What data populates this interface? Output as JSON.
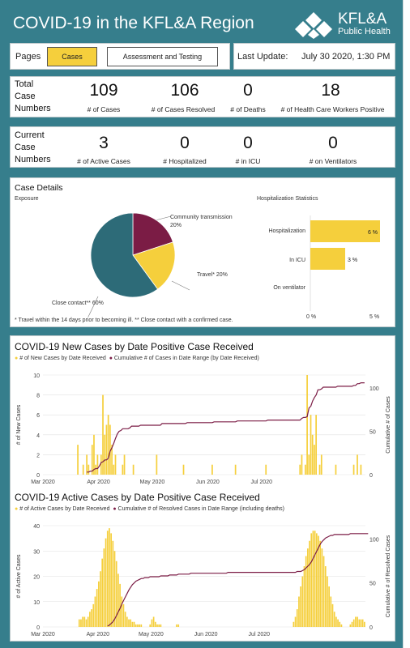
{
  "header": {
    "title": "COVID-19 in the KFL&A Region",
    "logo_name": "KFL&A",
    "logo_sub": "Public Health"
  },
  "pages": {
    "label": "Pages",
    "tabs": [
      "Cases",
      "Assessment and Testing"
    ],
    "active": 0
  },
  "last_update": {
    "label": "Last Update:",
    "value": "July 30 2020, 1:30 PM"
  },
  "totals": {
    "row_label": [
      "Total",
      "Case",
      "Numbers"
    ],
    "items": [
      {
        "value": "109",
        "label": "# of Cases"
      },
      {
        "value": "106",
        "label": "# of Cases Resolved"
      },
      {
        "value": "0",
        "label": "# of Deaths"
      },
      {
        "value": "18",
        "label": "# of Health Care Workers Positive"
      }
    ]
  },
  "current": {
    "row_label": [
      "Current",
      "Case",
      "Numbers"
    ],
    "items": [
      {
        "value": "3",
        "label": "# of Active Cases"
      },
      {
        "value": "0",
        "label": "# Hospitalized"
      },
      {
        "value": "0",
        "label": "# in ICU"
      },
      {
        "value": "0",
        "label": "# on Ventilators"
      }
    ]
  },
  "case_details": {
    "title": "Case Details",
    "exposure_label": "Exposure",
    "hosp_title": "Hospitalization Statistics",
    "footnote": "* Travel within the 14 days prior to becoming ill. ** Close contact with a confirmed case.",
    "pie": [
      {
        "label": "Community transmission",
        "pct_label": "20%",
        "value": 20,
        "color": "#7b1c45"
      },
      {
        "label": "Travel*",
        "pct_label": "20%",
        "value": 20,
        "color": "#f5cf3c"
      },
      {
        "label": "Close contact**",
        "pct_label": "60%",
        "value": 60,
        "color": "#2d6b78"
      }
    ],
    "hosp_bars": [
      {
        "label": "Hospitalization",
        "value": 6,
        "value_label": "6 %"
      },
      {
        "label": "In ICU",
        "value": 3,
        "value_label": "3 %"
      },
      {
        "label": "On ventilator",
        "value": 0,
        "value_label": ""
      }
    ],
    "hosp_ticks": [
      "0 %",
      "5 %"
    ],
    "hosp_max": 6
  },
  "chart_data": [
    {
      "type": "bar",
      "title": "COVID-19 New Cases by Date Positive Case Received",
      "legend": [
        "# of New Cases by Date Received",
        "Cumulative # of Cases in Date Range (by Date Received)"
      ],
      "colors": {
        "bars": "#f5cf3c",
        "line": "#7b1c45"
      },
      "ylabel": "# of New Cases",
      "y2label": "Cumulative # of Cases",
      "xticks": [
        "Mar 2020",
        "Apr 2020",
        "May 2020",
        "Jun 2020",
        "Jul 2020"
      ],
      "yticks": [
        "0",
        "2",
        "4",
        "6",
        "8",
        "10"
      ],
      "y2ticks": [
        "0",
        "50",
        "100"
      ],
      "ylim": [
        0,
        10
      ],
      "y2lim": [
        0,
        115
      ],
      "values": [
        0,
        0,
        0,
        0,
        0,
        0,
        0,
        0,
        0,
        0,
        0,
        0,
        0,
        0,
        0,
        0,
        0,
        0,
        0,
        3,
        0,
        0,
        1,
        0,
        2,
        1,
        0,
        3,
        4,
        1,
        2,
        0,
        2,
        8,
        4,
        5,
        6,
        5,
        3,
        1,
        2,
        0,
        0,
        0,
        1,
        2,
        0,
        0,
        0,
        0,
        1,
        0,
        0,
        0,
        0,
        0,
        0,
        0,
        0,
        0,
        0,
        0,
        0,
        2,
        0,
        0,
        0,
        0,
        0,
        0,
        0,
        0,
        0,
        0,
        0,
        0,
        0,
        0,
        1,
        0,
        0,
        0,
        0,
        0,
        0,
        0,
        0,
        0,
        0,
        0,
        0,
        0,
        0,
        0,
        1,
        0,
        0,
        0,
        0,
        0,
        0,
        0,
        0,
        0,
        0,
        0,
        0,
        1,
        0,
        0,
        0,
        0,
        0,
        0,
        0,
        0,
        0,
        0,
        0,
        0,
        0,
        0,
        0,
        0,
        1,
        0,
        0,
        0,
        0,
        0,
        0,
        0,
        0,
        0,
        0,
        0,
        0,
        0,
        0,
        0,
        0,
        0,
        0,
        1,
        2,
        0,
        1,
        10,
        2,
        6,
        4,
        3,
        6,
        0,
        1,
        2,
        0,
        0,
        0,
        0,
        0,
        0,
        0,
        1,
        0,
        0,
        0,
        0,
        0,
        0,
        0,
        0,
        0,
        1,
        0,
        2,
        0,
        1,
        0,
        0
      ],
      "cumulative": [
        0,
        0,
        0,
        0,
        0,
        0,
        0,
        0,
        0,
        0,
        0,
        0,
        0,
        0,
        0,
        0,
        0,
        0,
        0,
        0,
        0,
        0,
        0,
        0,
        3,
        3,
        4,
        4,
        6,
        7,
        7,
        10,
        14,
        15,
        17,
        17,
        19,
        27,
        31,
        36,
        42,
        47,
        50,
        51,
        53,
        53,
        53,
        53,
        54,
        56,
        56,
        56,
        56,
        56,
        57,
        57,
        57,
        57,
        57,
        57,
        57,
        57,
        57,
        57,
        57,
        57,
        59,
        59,
        59,
        59,
        59,
        59,
        59,
        59,
        59,
        59,
        59,
        59,
        59,
        59,
        60,
        60,
        60,
        60,
        60,
        60,
        60,
        60,
        60,
        60,
        60,
        60,
        60,
        60,
        60,
        61,
        61,
        61,
        61,
        61,
        61,
        61,
        61,
        61,
        61,
        61,
        61,
        61,
        62,
        62,
        62,
        62,
        62,
        62,
        62,
        62,
        62,
        62,
        62,
        62,
        62,
        62,
        62,
        62,
        62,
        63,
        63,
        63,
        63,
        63,
        63,
        63,
        63,
        63,
        63,
        63,
        63,
        63,
        63,
        63,
        63,
        63,
        63,
        63,
        65,
        66,
        66,
        67,
        77,
        79,
        85,
        89,
        92,
        98,
        98,
        99,
        101,
        101,
        101,
        101,
        101,
        101,
        101,
        101,
        102,
        102,
        102,
        102,
        102,
        102,
        102,
        102,
        102,
        103,
        103,
        105,
        105,
        106,
        106,
        106
      ],
      "xtick_days": [
        0,
        31,
        61,
        92,
        122
      ]
    },
    {
      "type": "bar",
      "title": "COVID-19 Active Cases by Date Positive Case Received",
      "legend": [
        "# of Active Cases by Date Received",
        "Cumulative # of Resolved Cases in Date Range (including deaths)"
      ],
      "colors": {
        "bars": "#f5cf3c",
        "line": "#7b1c45"
      },
      "ylabel": "# of Active Cases",
      "y2label": "Cumulative # of Resolved Cases",
      "xticks": [
        "Mar 2020",
        "Apr 2020",
        "May 2020",
        "Jun 2020",
        "Jul 2020"
      ],
      "yticks": [
        "0",
        "10",
        "20",
        "30",
        "40"
      ],
      "y2ticks": [
        "0",
        "50",
        "100"
      ],
      "ylim": [
        0,
        40
      ],
      "y2lim": [
        0,
        115
      ],
      "values": [
        0,
        0,
        0,
        0,
        0,
        0,
        0,
        0,
        0,
        0,
        0,
        0,
        0,
        0,
        0,
        0,
        0,
        0,
        0,
        0,
        3,
        3,
        4,
        4,
        3,
        4,
        6,
        7,
        9,
        12,
        15,
        18,
        22,
        27,
        31,
        35,
        38,
        39,
        37,
        34,
        30,
        26,
        21,
        17,
        12,
        9,
        6,
        4,
        3,
        3,
        2,
        2,
        1,
        1,
        1,
        1,
        0,
        0,
        0,
        0,
        1,
        3,
        4,
        2,
        1,
        1,
        1,
        0,
        0,
        0,
        0,
        0,
        0,
        0,
        0,
        1,
        1,
        0,
        0,
        0,
        0,
        0,
        0,
        0,
        0,
        0,
        0,
        0,
        0,
        0,
        0,
        0,
        0,
        0,
        0,
        0,
        0,
        0,
        0,
        0,
        0,
        0,
        0,
        0,
        0,
        0,
        0,
        0,
        0,
        0,
        0,
        0,
        0,
        0,
        0,
        0,
        0,
        0,
        0,
        0,
        0,
        0,
        0,
        0,
        0,
        0,
        0,
        0,
        0,
        0,
        0,
        0,
        0,
        0,
        0,
        0,
        0,
        0,
        0,
        0,
        0,
        2,
        4,
        7,
        12,
        16,
        20,
        24,
        28,
        31,
        34,
        37,
        38,
        38,
        37,
        36,
        34,
        31,
        28,
        24,
        20,
        16,
        12,
        9,
        6,
        4,
        3,
        2,
        1,
        0,
        0,
        0,
        0,
        1,
        2,
        3,
        4,
        4,
        3,
        3,
        3,
        2
      ],
      "cumulative": [
        0,
        0,
        0,
        0,
        0,
        0,
        0,
        0,
        0,
        0,
        0,
        0,
        0,
        0,
        0,
        0,
        0,
        0,
        0,
        0,
        0,
        0,
        0,
        0,
        0,
        0,
        0,
        0,
        0,
        0,
        0,
        0,
        0,
        0,
        0,
        0,
        1,
        2,
        4,
        6,
        9,
        13,
        17,
        21,
        26,
        30,
        34,
        38,
        42,
        45,
        48,
        50,
        52,
        53,
        54,
        55,
        55,
        56,
        56,
        56,
        57,
        57,
        57,
        57,
        57,
        57,
        58,
        58,
        58,
        58,
        58,
        59,
        59,
        59,
        59,
        59,
        60,
        60,
        60,
        60,
        60,
        60,
        60,
        61,
        61,
        61,
        61,
        61,
        61,
        61,
        61,
        61,
        61,
        61,
        61,
        61,
        61,
        61,
        61,
        61,
        61,
        61,
        61,
        61,
        62,
        62,
        62,
        62,
        62,
        62,
        62,
        62,
        62,
        62,
        62,
        62,
        62,
        62,
        62,
        62,
        62,
        62,
        62,
        62,
        62,
        62,
        62,
        62,
        62,
        62,
        62,
        62,
        62,
        62,
        62,
        62,
        62,
        62,
        62,
        62,
        62,
        62,
        62,
        63,
        63,
        63,
        64,
        65,
        67,
        69,
        71,
        74,
        78,
        82,
        86,
        90,
        94,
        97,
        99,
        101,
        102,
        103,
        104,
        104,
        105,
        105,
        105,
        105,
        105,
        105,
        105,
        105,
        105,
        106,
        106,
        106,
        106,
        106,
        106,
        106,
        106,
        106,
        106,
        106
      ],
      "xtick_days": [
        0,
        31,
        61,
        92,
        122
      ]
    }
  ]
}
